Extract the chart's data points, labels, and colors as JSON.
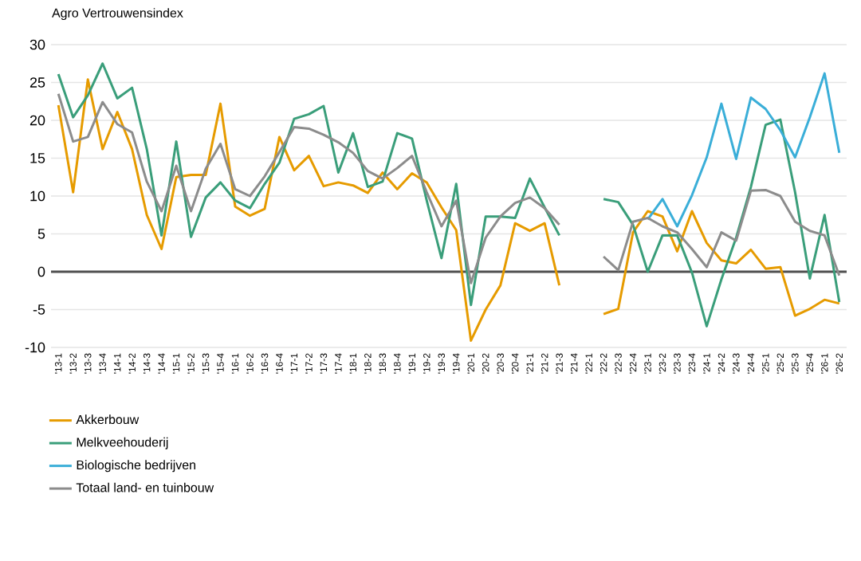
{
  "chart_data": {
    "type": "line",
    "title": "Agro Vertrouwensindex",
    "categories": [
      "'13-1",
      "'13-2",
      "'13-3",
      "'13-4",
      "'14-1",
      "'14-2",
      "'14-3",
      "'14-4",
      "'15-1",
      "'15-2",
      "'15-3",
      "'15-4",
      "'16-1",
      "'16-2",
      "'16-3",
      "'16-4",
      "'17-1",
      "'17-2",
      "'17-3",
      "'17-4",
      "'18-1",
      "'18-2",
      "'18-3",
      "'18-4",
      "'19-1",
      "'19-2",
      "'19-3",
      "'19-4",
      "'20-1",
      "'20-2",
      "'20-3",
      "'20-4",
      "'21-1",
      "'21-2",
      "'21-3",
      "'21-4",
      "'22-1",
      "'22-2",
      "'22-3",
      "'22-4",
      "'23-1",
      "'23-2",
      "'23-3",
      "'23-4",
      "'24-1",
      "'24-2",
      "'24-3",
      "'24-4",
      "'25-1",
      "'25-2",
      "'25-3",
      "'25-4",
      "'26-1",
      "'26-2"
    ],
    "series": [
      {
        "name": "Akkerbouw",
        "color": "#e69b00",
        "values": [
          22.0,
          10.5,
          25.4,
          16.2,
          21.1,
          16.2,
          7.5,
          3.0,
          12.5,
          12.8,
          12.8,
          22.2,
          8.6,
          7.4,
          8.3,
          17.8,
          13.4,
          15.3,
          11.3,
          11.8,
          11.4,
          10.4,
          13.1,
          10.9,
          13.0,
          11.8,
          8.5,
          5.5,
          -9.1,
          -5.0,
          -1.8,
          6.4,
          5.4,
          6.4,
          -1.8,
          null,
          null,
          -5.6,
          -4.9,
          5.2,
          8.0,
          7.3,
          2.7,
          8.0,
          3.8,
          1.5,
          1.1,
          2.9,
          0.4,
          0.6,
          -5.8,
          -4.9,
          -3.7,
          -4.2
        ]
      },
      {
        "name": "Melkveehouderij",
        "color": "#3a9e7a",
        "values": [
          26.1,
          20.4,
          23.3,
          27.5,
          22.9,
          24.3,
          16.2,
          4.8,
          17.2,
          4.6,
          9.8,
          11.8,
          9.4,
          8.4,
          11.6,
          14.4,
          20.2,
          20.8,
          21.9,
          13.1,
          18.3,
          11.2,
          11.9,
          18.3,
          17.6,
          9.4,
          1.8,
          11.6,
          -4.4,
          7.3,
          7.3,
          7.1,
          12.3,
          8.5,
          4.8,
          null,
          null,
          9.6,
          9.2,
          6.2,
          0.0,
          4.8,
          4.8,
          -0.1,
          -7.2,
          -1.0,
          4.5,
          11.2,
          19.4,
          20.1,
          10.5,
          -0.9,
          7.5,
          -4.0
        ]
      },
      {
        "name": "Biologische bedrijven",
        "color": "#3aaed8",
        "values": [
          null,
          null,
          null,
          null,
          null,
          null,
          null,
          null,
          null,
          null,
          null,
          null,
          null,
          null,
          null,
          null,
          null,
          null,
          null,
          null,
          null,
          null,
          null,
          null,
          null,
          null,
          null,
          null,
          null,
          null,
          null,
          null,
          null,
          null,
          null,
          null,
          null,
          null,
          null,
          null,
          6.9,
          9.6,
          6.0,
          10.1,
          15.1,
          22.2,
          14.9,
          23.0,
          21.5,
          18.7,
          15.1,
          20.4,
          26.2,
          15.7
        ]
      },
      {
        "name": "Totaal land- en tuinbouw",
        "color": "#8c8c8c",
        "values": [
          23.5,
          17.2,
          17.8,
          22.4,
          19.5,
          18.4,
          11.9,
          8.0,
          14.0,
          8.0,
          13.6,
          16.9,
          10.9,
          10.0,
          12.6,
          15.8,
          19.1,
          18.9,
          18.1,
          17.1,
          15.7,
          13.3,
          12.3,
          13.7,
          15.3,
          10.5,
          6.0,
          9.4,
          -1.5,
          4.5,
          7.3,
          9.1,
          9.8,
          8.4,
          6.2,
          null,
          null,
          2.0,
          0.2,
          6.6,
          7.1,
          6.0,
          5.2,
          3.0,
          0.6,
          5.2,
          4.1,
          10.7,
          10.8,
          10.0,
          6.6,
          5.4,
          4.8,
          -0.5
        ]
      }
    ],
    "ylim": [
      -10,
      30
    ],
    "yticks": [
      -10,
      -5,
      0,
      5,
      10,
      15,
      20,
      25,
      30
    ],
    "ref_lines": [
      {
        "axis": "y",
        "value": 0,
        "color": "#505050"
      }
    ],
    "grid": "y",
    "legend": "bottom left"
  }
}
